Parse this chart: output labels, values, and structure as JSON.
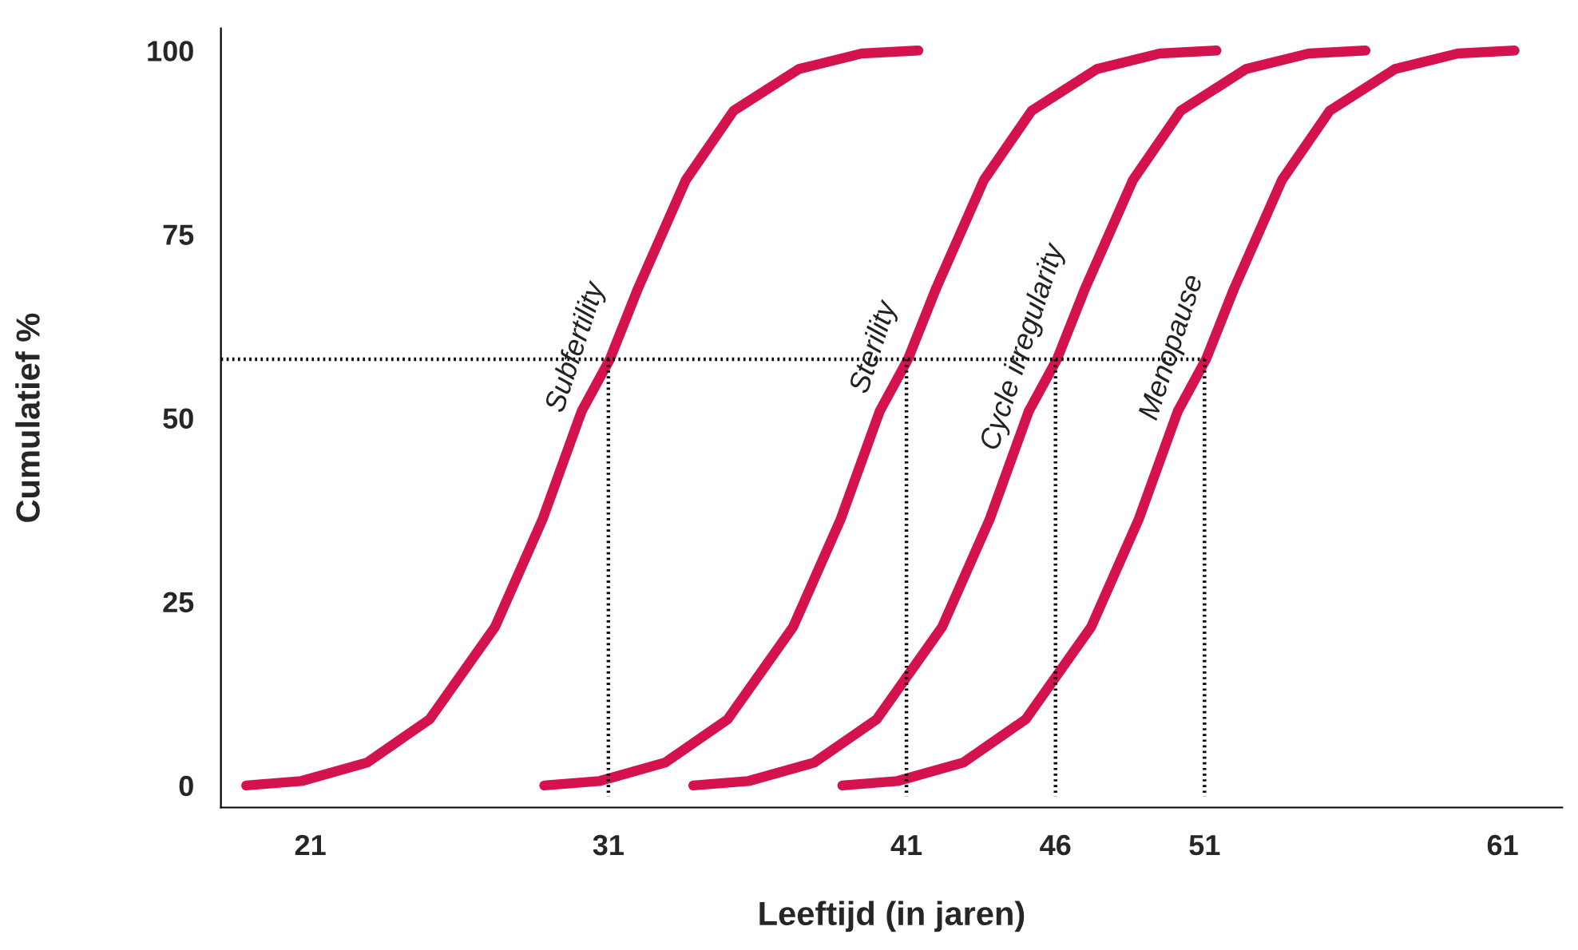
{
  "chart_data": {
    "type": "line",
    "xlabel": "Leeftijd (in jaren)",
    "ylabel": "Cumulatief %",
    "xlim": [
      18,
      63
    ],
    "xticks": [
      21,
      31,
      41,
      46,
      51,
      61
    ],
    "ylim": [
      -3,
      103
    ],
    "yticks": [
      0,
      25,
      50,
      75,
      100
    ],
    "grid": false,
    "legend": false,
    "marker": "none",
    "line_style": "solid",
    "series": [
      {
        "name": "Subfertility",
        "color": "#d3124e",
        "x": [
          18.85,
          20.7,
          22.9,
          25.0,
          27.2,
          28.8,
          30.1,
          31.05,
          32.0,
          33.6,
          35.2,
          37.4,
          39.5,
          41.4
        ],
        "values": [
          0,
          0.6,
          3.1,
          9.0,
          21.6,
          36.3,
          50.9,
          58,
          67.7,
          82.4,
          91.8,
          97.5,
          99.6,
          100
        ]
      },
      {
        "name": "Sterility",
        "color": "#d3124e",
        "x": [
          28.85,
          30.7,
          32.9,
          35.0,
          37.2,
          38.8,
          40.1,
          41.05,
          42.0,
          43.6,
          45.2,
          47.4,
          49.5,
          51.4
        ],
        "values": [
          0,
          0.6,
          3.1,
          9.0,
          21.6,
          36.3,
          50.9,
          58,
          67.7,
          82.4,
          91.8,
          97.5,
          99.6,
          100
        ]
      },
      {
        "name": "Cycle irregularity",
        "color": "#d3124e",
        "x": [
          33.85,
          35.7,
          37.9,
          40.0,
          42.2,
          43.8,
          45.1,
          46.05,
          47.0,
          48.6,
          50.2,
          52.4,
          54.5,
          56.4
        ],
        "values": [
          0,
          0.6,
          3.1,
          9.0,
          21.6,
          36.3,
          50.9,
          58,
          67.7,
          82.4,
          91.8,
          97.5,
          99.6,
          100
        ]
      },
      {
        "name": "Menopause",
        "color": "#d3124e",
        "x": [
          38.85,
          40.7,
          42.9,
          45.0,
          47.2,
          48.8,
          50.1,
          51.05,
          52.0,
          53.6,
          55.2,
          57.4,
          59.5,
          61.4
        ],
        "values": [
          0,
          0.6,
          3.1,
          9.0,
          21.6,
          36.3,
          50.9,
          58,
          67.7,
          82.4,
          91.8,
          97.5,
          99.6,
          100
        ]
      },
      {
        "color": "#000000",
        "line_style": "dotted",
        "x": [
          18,
          51
        ],
        "values": [
          58,
          58
        ]
      },
      {
        "color": "#000000",
        "line_style": "dotted",
        "x": [
          31,
          31
        ],
        "values": [
          58,
          -1.5
        ]
      },
      {
        "color": "#000000",
        "line_style": "dotted",
        "x": [
          41,
          41
        ],
        "values": [
          58,
          -1.5
        ]
      },
      {
        "color": "#000000",
        "line_style": "dotted",
        "x": [
          46,
          46
        ],
        "values": [
          58,
          -1.5
        ]
      },
      {
        "color": "#000000",
        "line_style": "dotted",
        "x": [
          51,
          51
        ],
        "values": [
          58,
          -1.5
        ]
      }
    ]
  }
}
